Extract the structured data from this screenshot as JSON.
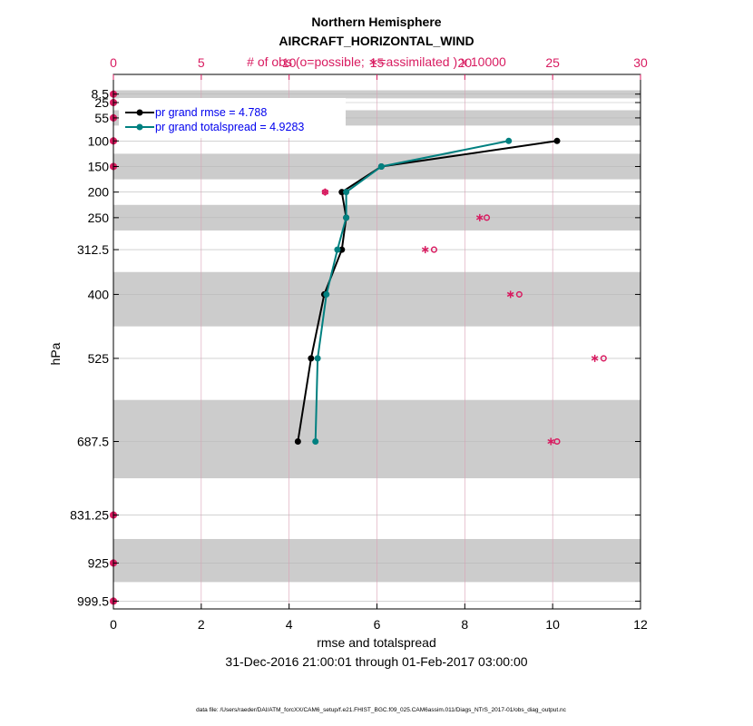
{
  "chart_data": {
    "type": "line",
    "title": "Northern Hemisphere",
    "subtitle": "AIRCRAFT_HORIZONTAL_WIND",
    "top_axis_label": "# of obs (o=possible; ∗=assimilated ) x 10000",
    "xlabel": "rmse and totalspread",
    "ylabel": "hPa",
    "date_range": "31-Dec-2016 21:00:01 through 01-Feb-2017 03:00:00",
    "footer": "data file: /Users/raeder/DAI/ATM_forcXX/CAM6_setup/f.e21.FHIST_BGC.f09_025.CAM6assim.011/Diags_NTrS_2017-01/obs_diag_output.nc",
    "xlim": [
      0,
      12
    ],
    "x_ticks": [
      "0",
      "2",
      "4",
      "6",
      "8",
      "10",
      "12"
    ],
    "top_xlim": [
      0,
      30
    ],
    "top_ticks": [
      "0",
      "5",
      "10",
      "15",
      "20",
      "25",
      "30"
    ],
    "ylim": [
      1014.75,
      -30
    ],
    "y_levels": [
      8.5,
      25,
      55,
      100,
      150,
      200,
      250,
      312.5,
      400,
      525,
      687.5,
      831.25,
      925,
      999.5
    ],
    "y_tick_labels": [
      "8.5",
      "25",
      "55",
      "100",
      "150",
      "200",
      "250",
      "312.5",
      "400",
      "525",
      "687.5",
      "831.25",
      "925",
      "999.5"
    ],
    "shaded_bands": [
      [
        1,
        16.75
      ],
      [
        40,
        70
      ],
      [
        125,
        175
      ],
      [
        225,
        275
      ],
      [
        356.25,
        462.5
      ],
      [
        606.25,
        759.375
      ],
      [
        878.125,
        962.25
      ]
    ],
    "grid": true,
    "legend_position": "top-left",
    "series": [
      {
        "name": "pr grand rmse = 4.788",
        "color": "#000000",
        "points": [
          [
            10.1,
            100
          ],
          [
            6.1,
            150
          ],
          [
            5.2,
            200
          ],
          [
            5.3,
            250
          ],
          [
            5.2,
            312.5
          ],
          [
            4.8,
            400
          ],
          [
            4.5,
            525
          ],
          [
            4.2,
            687.5
          ]
        ]
      },
      {
        "name": "pr grand totalspread = 4.9283",
        "color": "#008080",
        "points": [
          [
            9.0,
            100
          ],
          [
            6.1,
            150
          ],
          [
            5.3,
            200
          ],
          [
            5.3,
            250
          ],
          [
            5.1,
            312.5
          ],
          [
            4.85,
            400
          ],
          [
            4.65,
            525
          ],
          [
            4.6,
            687.5
          ]
        ]
      }
    ],
    "obs_counts": {
      "color": "#d81b60",
      "levels": [
        8.5,
        25,
        55,
        100,
        150,
        200,
        250,
        312.5,
        400,
        525,
        687.5,
        831.25,
        925,
        999.5
      ],
      "possible": [
        0,
        0,
        0,
        0,
        0,
        12.05,
        21.25,
        18.25,
        23.1,
        27.9,
        25.25,
        0,
        0,
        0
      ],
      "assimilated": [
        0,
        0,
        0,
        0,
        0,
        12.05,
        20.85,
        17.75,
        22.6,
        27.4,
        24.9,
        0,
        0,
        0
      ]
    }
  }
}
